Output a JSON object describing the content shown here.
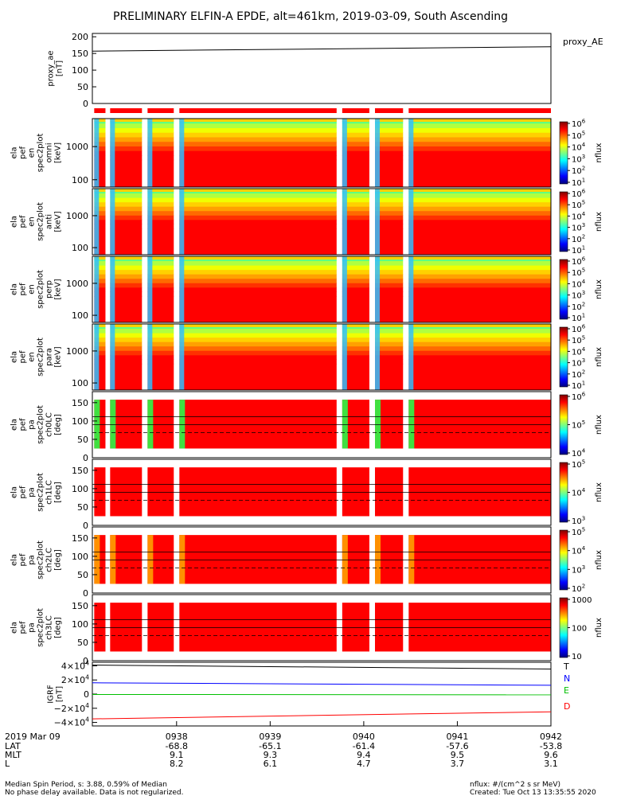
{
  "title": "PRELIMINARY ELFIN-A EPDE, alt=461km, 2019-03-09, South Ascending",
  "chart_data": [
    {
      "type": "line",
      "panel": "proxy_ae",
      "ylabel_lines": [
        "proxy_ae",
        "[nT]"
      ],
      "legend": "proxy_AE",
      "ylim": [
        0,
        210
      ],
      "yticks": [
        "0",
        "50",
        "100",
        "150",
        "200"
      ],
      "x": [
        "09:37.1",
        "09:42.0"
      ],
      "values": [
        157,
        170
      ]
    },
    {
      "type": "bar",
      "panel": "data_availability",
      "segments": [
        [
          "09:37.12",
          "09:37.24"
        ],
        [
          "09:37.29",
          "09:37.63"
        ],
        [
          "09:37.69",
          "09:37.97"
        ],
        [
          "09:38.03",
          "09:39.71"
        ],
        [
          "09:39.77",
          "09:40.06"
        ],
        [
          "09:40.12",
          "09:40.42"
        ],
        [
          "09:40.48",
          "09:42.00"
        ]
      ],
      "color": "#ff0000"
    },
    {
      "type": "heatmap",
      "panel": "omni",
      "ylabel_lines": [
        "ela",
        "pef",
        "en",
        "spec2plot",
        "omni",
        "[keV]"
      ],
      "ylog": true,
      "ylim": [
        60,
        7000
      ],
      "yticks": [
        "100",
        "1000"
      ],
      "colorbar": {
        "scale": "log",
        "label": "nflux",
        "ticks": [
          "10",
          "10",
          "10",
          "10",
          "10",
          "10"
        ],
        "exponents": [
          "1",
          "2",
          "3",
          "4",
          "5",
          "6"
        ]
      }
    },
    {
      "type": "heatmap",
      "panel": "anti",
      "ylabel_lines": [
        "ela",
        "pef",
        "en",
        "spec2plot",
        "anti",
        "[keV]"
      ],
      "ylog": true,
      "ylim": [
        60,
        7000
      ],
      "yticks": [
        "100",
        "1000"
      ],
      "colorbar": {
        "scale": "log",
        "label": "nflux",
        "ticks": [
          "10",
          "10",
          "10",
          "10",
          "10",
          "10"
        ],
        "exponents": [
          "1",
          "2",
          "3",
          "4",
          "5",
          "6"
        ]
      }
    },
    {
      "type": "heatmap",
      "panel": "perp",
      "ylabel_lines": [
        "ela",
        "pef",
        "en",
        "spec2plot",
        "perp",
        "[keV]"
      ],
      "ylog": true,
      "ylim": [
        60,
        7000
      ],
      "yticks": [
        "100",
        "1000"
      ],
      "colorbar": {
        "scale": "log",
        "label": "nflux",
        "ticks": [
          "10",
          "10",
          "10",
          "10",
          "10",
          "10"
        ],
        "exponents": [
          "1",
          "2",
          "3",
          "4",
          "5",
          "6"
        ]
      }
    },
    {
      "type": "heatmap",
      "panel": "para",
      "ylabel_lines": [
        "ela",
        "pef",
        "en",
        "spec2plot",
        "para",
        "[keV]"
      ],
      "ylog": true,
      "ylim": [
        60,
        7000
      ],
      "yticks": [
        "100",
        "1000"
      ],
      "colorbar": {
        "scale": "log",
        "label": "nflux",
        "ticks": [
          "10",
          "10",
          "10",
          "10",
          "10",
          "10"
        ],
        "exponents": [
          "1",
          "2",
          "3",
          "4",
          "5",
          "6"
        ]
      }
    },
    {
      "type": "heatmap",
      "panel": "ch0LC",
      "ylabel_lines": [
        "ela",
        "pef",
        "pa",
        "spec2plot",
        "ch0LC",
        "[deg]"
      ],
      "ylim": [
        0,
        180
      ],
      "yticks": [
        "0",
        "50",
        "100",
        "150"
      ],
      "lines_deg": [
        68,
        112
      ],
      "colorbar": {
        "scale": "log",
        "label": "nflux",
        "ticks": [
          "10",
          "10",
          "10"
        ],
        "exponents": [
          "4",
          "5",
          "6"
        ]
      }
    },
    {
      "type": "heatmap",
      "panel": "ch1LC",
      "ylabel_lines": [
        "ela",
        "pef",
        "pa",
        "spec2plot",
        "ch1LC",
        "[deg]"
      ],
      "ylim": [
        0,
        180
      ],
      "yticks": [
        "0",
        "50",
        "100",
        "150"
      ],
      "lines_deg": [
        68,
        112
      ],
      "colorbar": {
        "scale": "log",
        "label": "nflux",
        "ticks": [
          "10",
          "10",
          "10"
        ],
        "exponents": [
          "3",
          "4",
          "5"
        ]
      }
    },
    {
      "type": "heatmap",
      "panel": "ch2LC",
      "ylabel_lines": [
        "ela",
        "pef",
        "pa",
        "spec2plot",
        "ch2LC",
        "[deg]"
      ],
      "ylim": [
        0,
        180
      ],
      "yticks": [
        "0",
        "50",
        "100",
        "150"
      ],
      "lines_deg": [
        68,
        112
      ],
      "colorbar": {
        "scale": "log",
        "label": "nflux",
        "ticks": [
          "10",
          "10",
          "10",
          "10"
        ],
        "exponents": [
          "2",
          "3",
          "4",
          "5"
        ]
      }
    },
    {
      "type": "heatmap",
      "panel": "ch3LC",
      "ylabel_lines": [
        "ela",
        "pef",
        "pa",
        "spec2plot",
        "ch3LC",
        "[deg]"
      ],
      "ylim": [
        0,
        180
      ],
      "yticks": [
        "0",
        "50",
        "100",
        "150"
      ],
      "lines_deg": [
        68,
        112
      ],
      "colorbar": {
        "scale": "log",
        "label": "nflux",
        "ticks": [
          "10",
          "100",
          "1000"
        ],
        "exponents": [
          "",
          "",
          ""
        ]
      }
    },
    {
      "type": "line",
      "panel": "IGRF",
      "ylabel_lines": [
        "IGRF",
        "[nT]"
      ],
      "ylim": [
        -45000,
        45000
      ],
      "yticks": [
        "−4×10",
        "−2×10",
        "0",
        "2×10",
        "4×10"
      ],
      "ytick_exponents": [
        "4",
        "4",
        "",
        "4",
        "4"
      ],
      "series": [
        {
          "name": "T",
          "color": "#000000",
          "values": [
            41000,
            35500
          ]
        },
        {
          "name": "N",
          "color": "#0000ff",
          "values": [
            16000,
            12500
          ]
        },
        {
          "name": "E",
          "color": "#00c000",
          "values": [
            -500,
            -1000
          ]
        },
        {
          "name": "D",
          "color": "#ff0000",
          "values": [
            -35000,
            -25000
          ]
        }
      ]
    }
  ],
  "xaxis": {
    "date_label": "2019 Mar 09",
    "row_labels": [
      "LAT",
      "MLT",
      "L"
    ],
    "ticks": [
      {
        "time": "0938",
        "lat": "-68.8",
        "mlt": "9.1",
        "l": "8.2"
      },
      {
        "time": "0939",
        "lat": "-65.1",
        "mlt": "9.3",
        "l": "6.1"
      },
      {
        "time": "0940",
        "lat": "-61.4",
        "mlt": "9.4",
        "l": "4.7"
      },
      {
        "time": "0941",
        "lat": "-57.6",
        "mlt": "9.5",
        "l": "3.7"
      },
      {
        "time": "0942",
        "lat": "-53.8",
        "mlt": "9.6",
        "l": "3.1"
      }
    ]
  },
  "footer": {
    "left_line1": "Median Spin Period, s: 3.88, 0.59% of Median",
    "left_line2": "No phase delay available. Data is not regularized.",
    "right_line1": "nflux: #/(cm^2 s sr MeV)",
    "right_line2": "Created: Tue Oct 13 13:35:55 2020"
  }
}
